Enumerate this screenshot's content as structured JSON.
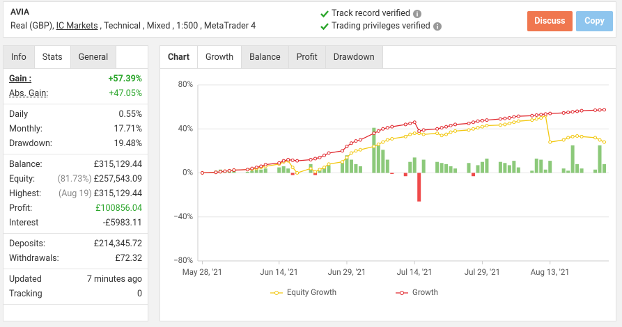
{
  "header": {
    "title": "AVIA",
    "account": "Real (GBP),",
    "broker": "IC Markets",
    "details": ", Technical , Mixed , 1:500 , MetaTrader 4",
    "verified": [
      "Track record verified",
      "Trading privileges verified"
    ],
    "buttons": [
      "Discuss",
      "Copy"
    ]
  },
  "stats": {
    "tabs": [
      "Info",
      "Stats",
      "General"
    ],
    "active_tab": 1,
    "groups": [
      [
        {
          "label": "Gain :",
          "value": "+57.39%",
          "color": "#2aa52a",
          "strong": true
        },
        {
          "label": "Abs. Gain:",
          "value": "+47.05%",
          "color": "#2aa52a",
          "strong": false
        }
      ],
      [
        {
          "label": "Daily",
          "value": "0.55%"
        },
        {
          "label": "Monthly:",
          "value": "17.71%"
        },
        {
          "label": "Drawdown:",
          "value": "19.48%"
        }
      ],
      [
        {
          "label": "Balance:",
          "value": "£315,129.44"
        },
        {
          "label": "Equity:",
          "note": "(81.73%)",
          "value": "£257,543.09"
        },
        {
          "label": "Highest:",
          "note": "(Aug 19)",
          "value": "£315,129.44"
        },
        {
          "label": "Profit:",
          "value": "£100856.04",
          "color": "#2aa52a"
        },
        {
          "label": "Interest",
          "value": "-£5983.11"
        }
      ],
      [
        {
          "label": "Deposits:",
          "value": "£214,345.72"
        },
        {
          "label": "Withdrawals:",
          "value": "£72.32"
        }
      ],
      [
        {
          "label": "Updated",
          "value": "7 minutes ago"
        },
        {
          "label": "Tracking",
          "value": "0"
        }
      ]
    ]
  },
  "chart_tabs": {
    "label": "Chart",
    "tabs": [
      "Growth",
      "Balance",
      "Profit",
      "Drawdown"
    ],
    "active_tab": 0
  },
  "chart_data": {
    "type": "line",
    "x": [
      "2021-05-28",
      "2021-05-31",
      "2021-06-01",
      "2021-06-02",
      "2021-06-03",
      "2021-06-04",
      "2021-06-07",
      "2021-06-08",
      "2021-06-09",
      "2021-06-10",
      "2021-06-11",
      "2021-06-14",
      "2021-06-15",
      "2021-06-16",
      "2021-06-17",
      "2021-06-18",
      "2021-06-21",
      "2021-06-22",
      "2021-06-23",
      "2021-06-24",
      "2021-06-25",
      "2021-06-28",
      "2021-06-29",
      "2021-06-30",
      "2021-07-01",
      "2021-07-02",
      "2021-07-05",
      "2021-07-06",
      "2021-07-07",
      "2021-07-08",
      "2021-07-09",
      "2021-07-12",
      "2021-07-13",
      "2021-07-14",
      "2021-07-15",
      "2021-07-16",
      "2021-07-19",
      "2021-07-20",
      "2021-07-21",
      "2021-07-22",
      "2021-07-23",
      "2021-07-26",
      "2021-07-27",
      "2021-07-28",
      "2021-07-29",
      "2021-07-30",
      "2021-08-02",
      "2021-08-03",
      "2021-08-04",
      "2021-08-05",
      "2021-08-06",
      "2021-08-09",
      "2021-08-10",
      "2021-08-11",
      "2021-08-12",
      "2021-08-13",
      "2021-08-16",
      "2021-08-17",
      "2021-08-18",
      "2021-08-19",
      "2021-08-20",
      "2021-08-23",
      "2021-08-24",
      "2021-08-25"
    ],
    "bars": {
      "positive_color": "#8cc97a",
      "negative_color": "#ef4a4a",
      "values": [
        0,
        2,
        3,
        2,
        1,
        2,
        1,
        2,
        3,
        3,
        4,
        5,
        6,
        4,
        -2,
        -1,
        8,
        -2,
        4,
        5,
        7,
        9,
        16,
        12,
        8,
        6,
        41,
        25,
        21,
        12,
        -1,
        -3,
        10,
        14,
        -26,
        12,
        10,
        9,
        8,
        6,
        4,
        9,
        -3,
        7,
        10,
        13,
        10,
        9,
        7,
        11,
        5,
        2,
        13,
        12,
        3,
        11,
        4,
        2,
        25,
        8,
        4,
        3,
        25,
        8
      ]
    },
    "series": [
      {
        "name": "Equity Growth",
        "color": "#f2c811",
        "values": [
          0,
          0.5,
          1,
          1.5,
          2,
          2.5,
          3,
          3.5,
          4,
          5,
          6,
          8,
          10,
          11,
          5,
          0,
          4,
          1,
          3,
          5,
          8,
          10,
          14,
          18,
          20,
          21,
          24,
          26,
          28,
          30,
          31,
          33,
          35,
          36,
          36,
          35,
          36,
          34,
          35,
          37,
          38,
          39,
          40,
          41,
          42,
          43,
          43.5,
          44,
          45,
          46,
          47,
          48,
          49,
          50,
          52,
          28,
          30,
          32,
          33,
          33.5,
          33,
          32,
          30,
          28
        ]
      },
      {
        "name": "Growth",
        "color": "#e0282e",
        "values": [
          0,
          0.5,
          1,
          1.5,
          2,
          2.5,
          3,
          4,
          5,
          6,
          7.5,
          9,
          11,
          12,
          11.5,
          11,
          12,
          13,
          14,
          16,
          18,
          20,
          24,
          27,
          29,
          30,
          36,
          38,
          40,
          41,
          42,
          44,
          45,
          46,
          38,
          39,
          40,
          41,
          42,
          43,
          44,
          45,
          46,
          47,
          47.5,
          48,
          49,
          49.5,
          50,
          51,
          51.5,
          52,
          52.5,
          53,
          53.5,
          54,
          54.5,
          55,
          55.5,
          56,
          56.5,
          57,
          57.2,
          57.39
        ]
      }
    ],
    "xlim": [
      "2021-05-27",
      "2021-08-26"
    ],
    "xticks": [
      {
        "value": "2021-05-28",
        "label": "May 28, '21"
      },
      {
        "value": "2021-06-14",
        "label": "Jun 14, '21"
      },
      {
        "value": "2021-06-29",
        "label": "Jun 29, '21"
      },
      {
        "value": "2021-07-14",
        "label": "Jul 14, '21"
      },
      {
        "value": "2021-07-29",
        "label": "Jul 29, '21"
      },
      {
        "value": "2021-08-13",
        "label": "Aug 13, '21"
      }
    ],
    "ylim": [
      -80,
      80
    ],
    "yticks": [
      {
        "value": -80,
        "label": "−80%"
      },
      {
        "value": -40,
        "label": "−40%"
      },
      {
        "value": 0,
        "label": "0%"
      },
      {
        "value": 40,
        "label": "40%"
      },
      {
        "value": 80,
        "label": "80%"
      }
    ],
    "grid": true
  }
}
